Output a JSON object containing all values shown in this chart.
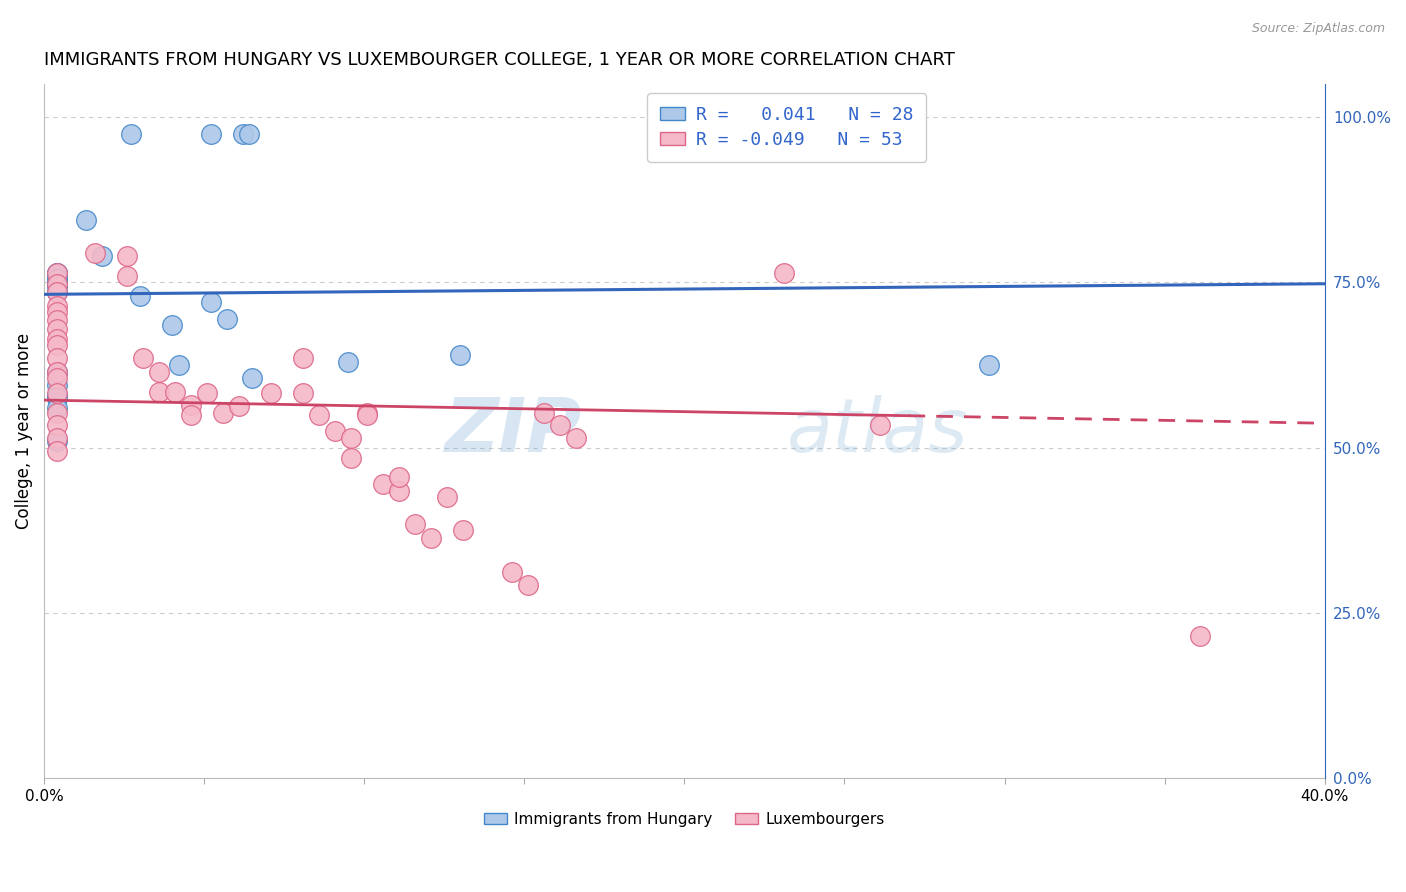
{
  "title": "IMMIGRANTS FROM HUNGARY VS LUXEMBOURGER COLLEGE, 1 YEAR OR MORE CORRELATION CHART",
  "source": "Source: ZipAtlas.com",
  "ylabel": "College, 1 year or more",
  "xlim": [
    0.0,
    0.4
  ],
  "ylim": [
    0.0,
    1.05
  ],
  "x_ticks": [
    0.0,
    0.05,
    0.1,
    0.15,
    0.2,
    0.25,
    0.3,
    0.35,
    0.4
  ],
  "x_tick_labels": [
    "0.0%",
    "",
    "",
    "",
    "",
    "",
    "",
    "",
    "40.0%"
  ],
  "y_ticks_right": [
    0.0,
    0.25,
    0.5,
    0.75,
    1.0
  ],
  "y_tick_labels_right": [
    "0.0%",
    "25.0%",
    "50.0%",
    "75.0%",
    "100.0%"
  ],
  "blue_R": "0.041",
  "blue_N": "28",
  "pink_R": "-0.049",
  "pink_N": "53",
  "legend_label_blue": "Immigrants from Hungary",
  "legend_label_pink": "Luxembourgers",
  "blue_color": "#adc8e8",
  "pink_color": "#f5b8c8",
  "blue_edge_color": "#4488cc",
  "pink_edge_color": "#dd6688",
  "blue_line_color": "#3366bb",
  "pink_line_color": "#cc4466",
  "legend_text_color": "#3366cc",
  "watermark_color": "#b8d4ee",
  "blue_x": [
    0.027,
    0.052,
    0.062,
    0.064,
    0.013,
    0.018,
    0.004,
    0.004,
    0.004,
    0.004,
    0.004,
    0.004,
    0.004,
    0.03,
    0.052,
    0.057,
    0.04,
    0.13,
    0.095,
    0.042,
    0.004,
    0.065,
    0.004,
    0.004,
    0.004,
    0.004,
    0.004,
    0.295
  ],
  "blue_y": [
    0.975,
    0.975,
    0.975,
    0.975,
    0.845,
    0.79,
    0.765,
    0.765,
    0.755,
    0.755,
    0.748,
    0.745,
    0.735,
    0.73,
    0.72,
    0.695,
    0.685,
    0.64,
    0.63,
    0.625,
    0.615,
    0.605,
    0.595,
    0.58,
    0.575,
    0.56,
    0.51,
    0.625
  ],
  "pink_x": [
    0.004,
    0.004,
    0.004,
    0.004,
    0.004,
    0.004,
    0.004,
    0.004,
    0.004,
    0.004,
    0.004,
    0.004,
    0.004,
    0.004,
    0.004,
    0.004,
    0.004,
    0.016,
    0.026,
    0.026,
    0.031,
    0.036,
    0.036,
    0.041,
    0.046,
    0.046,
    0.051,
    0.056,
    0.061,
    0.071,
    0.081,
    0.081,
    0.086,
    0.091,
    0.096,
    0.096,
    0.101,
    0.101,
    0.106,
    0.111,
    0.111,
    0.116,
    0.121,
    0.126,
    0.131,
    0.146,
    0.151,
    0.156,
    0.161,
    0.166,
    0.261,
    0.231,
    0.361
  ],
  "pink_y": [
    0.765,
    0.748,
    0.735,
    0.715,
    0.705,
    0.693,
    0.68,
    0.665,
    0.655,
    0.635,
    0.615,
    0.605,
    0.583,
    0.553,
    0.535,
    0.515,
    0.495,
    0.795,
    0.79,
    0.76,
    0.635,
    0.615,
    0.585,
    0.585,
    0.565,
    0.549,
    0.583,
    0.553,
    0.563,
    0.583,
    0.635,
    0.583,
    0.549,
    0.525,
    0.515,
    0.485,
    0.553,
    0.549,
    0.445,
    0.435,
    0.455,
    0.385,
    0.363,
    0.425,
    0.375,
    0.312,
    0.293,
    0.553,
    0.535,
    0.515,
    0.535,
    0.765,
    0.215
  ],
  "blue_line_x": [
    0.0,
    0.4
  ],
  "blue_line_y": [
    0.732,
    0.748
  ],
  "pink_line_x": [
    0.0,
    0.4
  ],
  "pink_line_y": [
    0.572,
    0.537
  ],
  "pink_line_dashed_start": 0.27
}
